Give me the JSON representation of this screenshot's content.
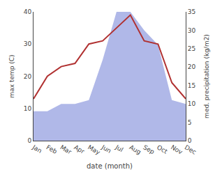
{
  "chart_data": {
    "type": "line",
    "xlabel": "date (month)",
    "ylabel": "max temp (C)",
    "y2label": "med. precipitation (kg/m2)",
    "categories": [
      "Jan",
      "Feb",
      "Mar",
      "Apr",
      "May",
      "Jun",
      "Jul",
      "Aug",
      "Sep",
      "Oct",
      "Nov",
      "Dec"
    ],
    "series": [
      {
        "type": "area",
        "axis": "y2",
        "color": "#b0b8e8",
        "values": [
          8,
          8,
          10,
          10,
          11,
          22,
          35,
          35,
          30,
          26,
          11,
          10
        ]
      },
      {
        "type": "line",
        "color": "#b03030",
        "values": [
          13,
          20,
          23,
          24,
          30,
          31,
          35,
          39,
          31,
          30,
          18,
          13
        ]
      }
    ],
    "ylim": [
      0,
      40
    ],
    "yticks": [
      0,
      10,
      20,
      30,
      40
    ],
    "y2lim": [
      0,
      35
    ],
    "y2ticks": [
      0,
      5,
      10,
      15,
      20,
      25,
      30,
      35
    ],
    "grid": false
  }
}
